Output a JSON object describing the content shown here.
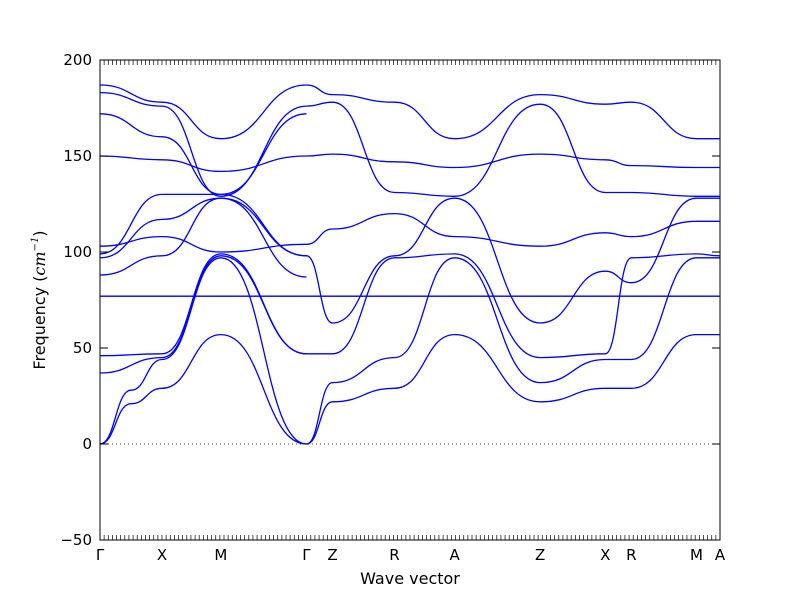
{
  "chart_data": {
    "type": "line",
    "title": "",
    "xlabel": "Wave vector",
    "ylabel_text": "Frequency (",
    "ylabel_unit": "cm",
    "ylabel_exp": "−1",
    "ylabel_close": ")",
    "ylim": [
      -50,
      200
    ],
    "yticks": [
      -50,
      0,
      50,
      100,
      150,
      200
    ],
    "ytick_labels": [
      "−50",
      "0",
      "50",
      "100",
      "150",
      "200"
    ],
    "x_points": [
      {
        "label": "Γ",
        "x": 0.0
      },
      {
        "label": "X",
        "x": 0.1
      },
      {
        "label": "M",
        "x": 0.195
      },
      {
        "label": "Γ",
        "x": 0.333
      },
      {
        "label": "Z",
        "x": 0.375
      },
      {
        "label": "R",
        "x": 0.475
      },
      {
        "label": "A",
        "x": 0.572
      },
      {
        "label": "Z",
        "x": 0.71
      },
      {
        "label": "X",
        "x": 0.815
      },
      {
        "label": "R",
        "x": 0.857
      },
      {
        "label": "M",
        "x": 0.962
      },
      {
        "label": "A",
        "x": 1.0
      }
    ],
    "zero_line": "dotted",
    "line_color": "#0000ff",
    "series": [
      {
        "values": [
          [
            0,
            0
          ],
          [
            0.05,
            21
          ],
          [
            0.1,
            29
          ],
          [
            0.195,
            57
          ],
          [
            0.333,
            0
          ]
        ]
      },
      {
        "values": [
          [
            0,
            0
          ],
          [
            0.05,
            28
          ],
          [
            0.1,
            44
          ],
          [
            0.195,
            97
          ],
          [
            0.333,
            0
          ]
        ]
      },
      {
        "values": [
          [
            0,
            37
          ],
          [
            0.1,
            45
          ],
          [
            0.195,
            98
          ],
          [
            0.333,
            47
          ]
        ]
      },
      {
        "values": [
          [
            0,
            46
          ],
          [
            0.1,
            47
          ],
          [
            0.195,
            99
          ],
          [
            0.333,
            47
          ]
        ]
      },
      {
        "values": [
          [
            0,
            77
          ],
          [
            0.333,
            77
          ]
        ]
      },
      {
        "values": [
          [
            0,
            88
          ],
          [
            0.1,
            98
          ],
          [
            0.195,
            128
          ],
          [
            0.333,
            87
          ]
        ]
      },
      {
        "values": [
          [
            0,
            97
          ],
          [
            0.1,
            117
          ],
          [
            0.195,
            128
          ],
          [
            0.333,
            98
          ]
        ]
      },
      {
        "values": [
          [
            0,
            99
          ],
          [
            0.1,
            130
          ],
          [
            0.195,
            130
          ],
          [
            0.333,
            98
          ]
        ]
      },
      {
        "values": [
          [
            0,
            103
          ],
          [
            0.1,
            108
          ],
          [
            0.195,
            100
          ],
          [
            0.333,
            104
          ]
        ]
      },
      {
        "values": [
          [
            0,
            150
          ],
          [
            0.1,
            148
          ],
          [
            0.195,
            142
          ],
          [
            0.333,
            150
          ]
        ]
      },
      {
        "values": [
          [
            0,
            172
          ],
          [
            0.1,
            160
          ],
          [
            0.195,
            130
          ],
          [
            0.333,
            172
          ]
        ]
      },
      {
        "values": [
          [
            0,
            183
          ],
          [
            0.1,
            176
          ],
          [
            0.195,
            129
          ],
          [
            0.333,
            176
          ]
        ]
      },
      {
        "values": [
          [
            0,
            187
          ],
          [
            0.1,
            178
          ],
          [
            0.195,
            159
          ],
          [
            0.333,
            187
          ]
        ]
      },
      {
        "values": [
          [
            0.333,
            0
          ],
          [
            0.375,
            22
          ],
          [
            0.475,
            29
          ],
          [
            0.572,
            57
          ],
          [
            0.71,
            22
          ],
          [
            0.815,
            29
          ],
          [
            0.857,
            29
          ],
          [
            0.962,
            57
          ],
          [
            1.0,
            57
          ]
        ]
      },
      {
        "values": [
          [
            0.333,
            0
          ],
          [
            0.375,
            32
          ],
          [
            0.475,
            45
          ],
          [
            0.572,
            97
          ],
          [
            0.71,
            32
          ],
          [
            0.815,
            44
          ],
          [
            0.857,
            44
          ],
          [
            0.962,
            97
          ],
          [
            1.0,
            97
          ]
        ]
      },
      {
        "values": [
          [
            0.333,
            47
          ],
          [
            0.375,
            47
          ],
          [
            0.475,
            97
          ],
          [
            0.572,
            99
          ],
          [
            0.71,
            45
          ],
          [
            0.815,
            47
          ],
          [
            0.857,
            97
          ],
          [
            0.962,
            99
          ],
          [
            1.0,
            98
          ]
        ]
      },
      {
        "values": [
          [
            0.333,
            77
          ],
          [
            1.0,
            77
          ]
        ]
      },
      {
        "values": [
          [
            0.333,
            98
          ],
          [
            0.375,
            63
          ],
          [
            0.475,
            98
          ],
          [
            0.572,
            128
          ],
          [
            0.71,
            63
          ],
          [
            0.815,
            90
          ],
          [
            0.857,
            84
          ],
          [
            0.962,
            128
          ],
          [
            1.0,
            128
          ]
        ]
      },
      {
        "values": [
          [
            0.333,
            104
          ],
          [
            0.375,
            112
          ],
          [
            0.475,
            120
          ],
          [
            0.572,
            108
          ],
          [
            0.71,
            103
          ],
          [
            0.815,
            110
          ],
          [
            0.857,
            108
          ],
          [
            0.962,
            116
          ],
          [
            1.0,
            116
          ]
        ]
      },
      {
        "values": [
          [
            0.333,
            150
          ],
          [
            0.375,
            151
          ],
          [
            0.475,
            147
          ],
          [
            0.572,
            144
          ],
          [
            0.71,
            151
          ],
          [
            0.815,
            148
          ],
          [
            0.857,
            145
          ],
          [
            0.962,
            144
          ],
          [
            1.0,
            144
          ]
        ]
      },
      {
        "values": [
          [
            0.333,
            176
          ],
          [
            0.375,
            178
          ],
          [
            0.475,
            131
          ],
          [
            0.572,
            129
          ],
          [
            0.71,
            177
          ],
          [
            0.815,
            131
          ],
          [
            0.857,
            131
          ],
          [
            0.962,
            129
          ],
          [
            1.0,
            129
          ]
        ]
      },
      {
        "values": [
          [
            0.333,
            187
          ],
          [
            0.375,
            182
          ],
          [
            0.475,
            178
          ],
          [
            0.572,
            159
          ],
          [
            0.71,
            182
          ],
          [
            0.815,
            177
          ],
          [
            0.857,
            178
          ],
          [
            0.962,
            159
          ],
          [
            1.0,
            159
          ]
        ]
      }
    ]
  }
}
